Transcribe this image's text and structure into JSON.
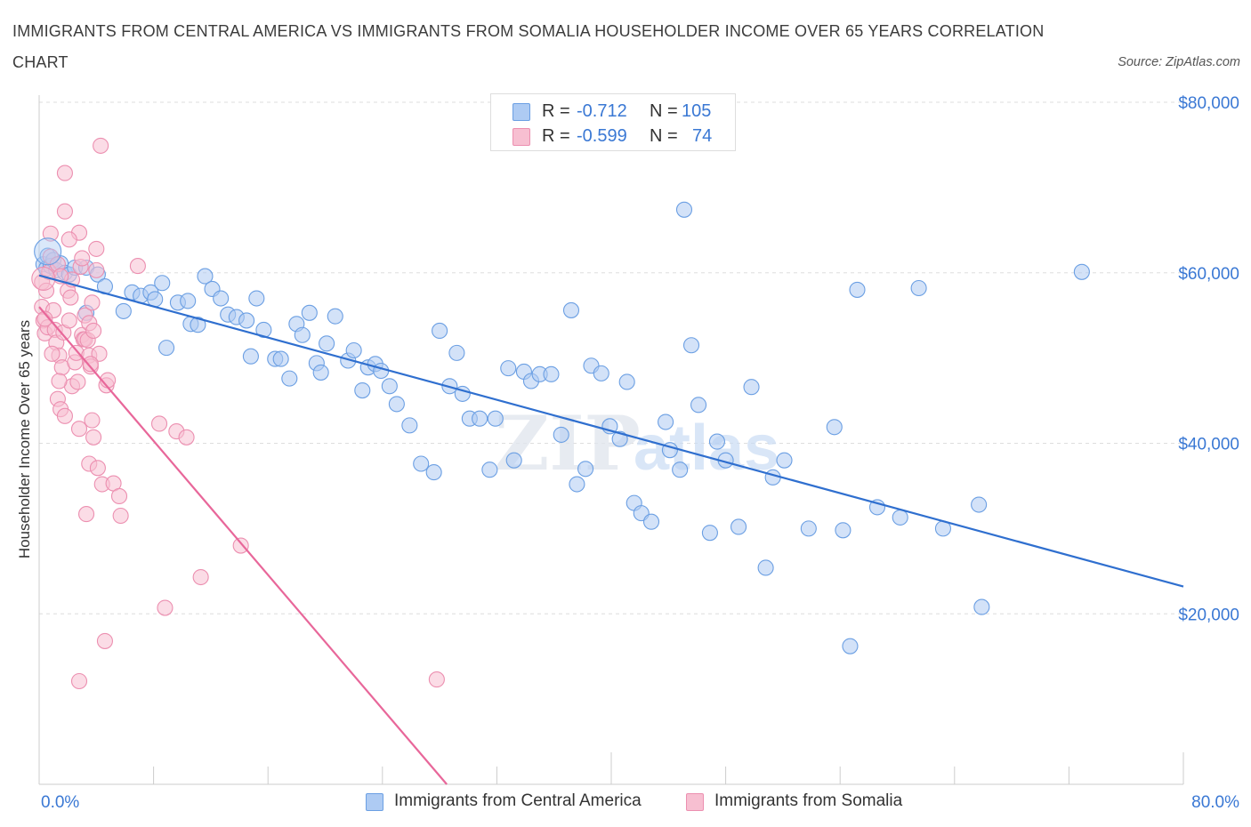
{
  "header": {
    "title": "IMMIGRANTS FROM CENTRAL AMERICA VS IMMIGRANTS FROM SOMALIA HOUSEHOLDER INCOME OVER 65 YEARS CORRELATION CHART",
    "source": "Source: ZipAtlas.com"
  },
  "legend": {
    "rows": [
      {
        "r_label": "R =",
        "r_value": "-0.712",
        "n_label": "N =",
        "n_value": "105"
      },
      {
        "r_label": "R =",
        "r_value": "-0.599",
        "n_label": "N =",
        "n_value": "74"
      }
    ]
  },
  "watermark": {
    "zip": "ZIP",
    "atlas": "atlas"
  },
  "colors": {
    "blue_fill": "#aecbf3",
    "blue_stroke": "#6b9fe3",
    "blue_line": "#2f6fcf",
    "pink_fill": "#f7bfd1",
    "pink_stroke": "#ec8fb0",
    "pink_line": "#e8679a",
    "tick_label": "#3a78d4",
    "grid": "#dddddd"
  },
  "chart_data": {
    "type": "scatter",
    "title": "IMMIGRANTS FROM CENTRAL AMERICA VS IMMIGRANTS FROM SOMALIA HOUSEHOLDER INCOME OVER 65 YEARS CORRELATION CHART",
    "xlabel": "",
    "ylabel": "Householder Income Over 65 years",
    "xlim": [
      0,
      80
    ],
    "ylim": [
      0,
      80000
    ],
    "x_tick_labels": [
      "0.0%",
      "80.0%"
    ],
    "y_ticks": [
      20000,
      40000,
      60000,
      80000
    ],
    "y_tick_labels": [
      "$20,000",
      "$40,000",
      "$60,000",
      "$80,000"
    ],
    "grid": "horizontal dashed",
    "legend_position": "bottom",
    "series": [
      {
        "name": "Immigrants from Central America",
        "color": "#6b9fe3",
        "trend": {
          "x": [
            0,
            80
          ],
          "y": [
            59700,
            23200
          ]
        },
        "points": [
          [
            0.3,
            61000
          ],
          [
            0.5,
            60500
          ],
          [
            0.6,
            62000
          ],
          [
            0.8,
            60800
          ],
          [
            1.0,
            61500
          ],
          [
            1.2,
            60300
          ],
          [
            1.5,
            61100
          ],
          [
            1.8,
            60000
          ],
          [
            2.1,
            59800
          ],
          [
            2.5,
            60600
          ],
          [
            3.3,
            60600
          ],
          [
            3.3,
            55300
          ],
          [
            4.1,
            59800
          ],
          [
            4.6,
            58400
          ],
          [
            5.9,
            55500
          ],
          [
            6.5,
            57700
          ],
          [
            7.1,
            57300
          ],
          [
            7.8,
            57700
          ],
          [
            8.1,
            56900
          ],
          [
            8.6,
            58800
          ],
          [
            8.9,
            51200
          ],
          [
            9.7,
            56500
          ],
          [
            10.4,
            56700
          ],
          [
            10.6,
            54000
          ],
          [
            11.1,
            53900
          ],
          [
            11.6,
            59600
          ],
          [
            12.1,
            58100
          ],
          [
            12.7,
            57000
          ],
          [
            13.2,
            55100
          ],
          [
            13.8,
            54800
          ],
          [
            14.5,
            54400
          ],
          [
            14.8,
            50200
          ],
          [
            15.2,
            57000
          ],
          [
            15.7,
            53300
          ],
          [
            16.5,
            49900
          ],
          [
            16.9,
            49900
          ],
          [
            17.5,
            47600
          ],
          [
            18.0,
            54000
          ],
          [
            18.4,
            52700
          ],
          [
            18.9,
            55300
          ],
          [
            19.4,
            49400
          ],
          [
            19.7,
            48300
          ],
          [
            20.1,
            51700
          ],
          [
            20.7,
            54900
          ],
          [
            21.6,
            49700
          ],
          [
            22.0,
            50900
          ],
          [
            22.6,
            46200
          ],
          [
            23.0,
            48900
          ],
          [
            23.5,
            49300
          ],
          [
            23.9,
            48500
          ],
          [
            24.5,
            46700
          ],
          [
            25.0,
            44600
          ],
          [
            25.9,
            42100
          ],
          [
            26.7,
            37600
          ],
          [
            27.6,
            36600
          ],
          [
            28.0,
            53200
          ],
          [
            28.7,
            46700
          ],
          [
            29.2,
            50600
          ],
          [
            29.6,
            45800
          ],
          [
            30.1,
            42900
          ],
          [
            30.8,
            42900
          ],
          [
            31.5,
            36900
          ],
          [
            31.9,
            42900
          ],
          [
            32.8,
            48800
          ],
          [
            33.2,
            38000
          ],
          [
            33.9,
            48400
          ],
          [
            34.4,
            47300
          ],
          [
            35.0,
            48100
          ],
          [
            35.8,
            48100
          ],
          [
            36.5,
            41000
          ],
          [
            37.2,
            55600
          ],
          [
            37.6,
            35200
          ],
          [
            38.2,
            37000
          ],
          [
            38.6,
            49100
          ],
          [
            39.3,
            48200
          ],
          [
            39.9,
            42000
          ],
          [
            40.6,
            40500
          ],
          [
            41.1,
            47200
          ],
          [
            41.6,
            33000
          ],
          [
            42.1,
            31800
          ],
          [
            42.8,
            30800
          ],
          [
            43.8,
            42500
          ],
          [
            44.1,
            39200
          ],
          [
            44.8,
            36900
          ],
          [
            45.1,
            67400
          ],
          [
            45.6,
            51500
          ],
          [
            46.1,
            44500
          ],
          [
            46.9,
            29500
          ],
          [
            47.4,
            40200
          ],
          [
            48.0,
            38000
          ],
          [
            48.9,
            30200
          ],
          [
            49.8,
            46600
          ],
          [
            50.8,
            25400
          ],
          [
            51.3,
            36000
          ],
          [
            52.1,
            38000
          ],
          [
            53.8,
            30000
          ],
          [
            55.6,
            41900
          ],
          [
            56.2,
            29800
          ],
          [
            57.2,
            58000
          ],
          [
            58.6,
            32500
          ],
          [
            60.2,
            31300
          ],
          [
            61.5,
            58200
          ],
          [
            63.2,
            30000
          ],
          [
            65.7,
            32800
          ],
          [
            65.9,
            20800
          ],
          [
            56.7,
            16200
          ],
          [
            72.9,
            60100
          ]
        ]
      },
      {
        "name": "Immigrants from Somalia",
        "color": "#ec8fb0",
        "trend": {
          "x": [
            0,
            28.5
          ],
          "y": [
            56000,
            0
          ]
        },
        "points": [
          [
            0.2,
            58900
          ],
          [
            0.2,
            56000
          ],
          [
            0.3,
            54400
          ],
          [
            0.4,
            52900
          ],
          [
            0.5,
            57900
          ],
          [
            0.6,
            53600
          ],
          [
            0.7,
            60100
          ],
          [
            0.8,
            61900
          ],
          [
            0.8,
            64600
          ],
          [
            1.0,
            55600
          ],
          [
            1.1,
            53300
          ],
          [
            1.2,
            51800
          ],
          [
            1.3,
            61000
          ],
          [
            1.3,
            45200
          ],
          [
            1.4,
            50300
          ],
          [
            1.5,
            44000
          ],
          [
            1.6,
            48900
          ],
          [
            1.7,
            53000
          ],
          [
            1.8,
            67200
          ],
          [
            1.8,
            43200
          ],
          [
            1.8,
            71700
          ],
          [
            2.0,
            57900
          ],
          [
            2.1,
            54400
          ],
          [
            2.2,
            57100
          ],
          [
            2.3,
            59200
          ],
          [
            2.3,
            46700
          ],
          [
            2.5,
            49500
          ],
          [
            2.6,
            50600
          ],
          [
            2.7,
            47200
          ],
          [
            2.8,
            64700
          ],
          [
            2.8,
            41700
          ],
          [
            2.9,
            60700
          ],
          [
            3.0,
            61700
          ],
          [
            3.0,
            52700
          ],
          [
            3.1,
            52200
          ],
          [
            3.2,
            55000
          ],
          [
            3.2,
            52200
          ],
          [
            3.3,
            31700
          ],
          [
            3.4,
            52100
          ],
          [
            3.5,
            54100
          ],
          [
            3.5,
            50300
          ],
          [
            3.5,
            37600
          ],
          [
            3.6,
            49000
          ],
          [
            3.7,
            56500
          ],
          [
            3.7,
            42700
          ],
          [
            3.8,
            53200
          ],
          [
            3.8,
            40700
          ],
          [
            4.0,
            62800
          ],
          [
            4.0,
            60300
          ],
          [
            4.1,
            37100
          ],
          [
            4.2,
            50500
          ],
          [
            4.3,
            74900
          ],
          [
            4.4,
            35200
          ],
          [
            4.6,
            16800
          ],
          [
            4.7,
            46800
          ],
          [
            4.8,
            47400
          ],
          [
            5.2,
            35300
          ],
          [
            5.6,
            33800
          ],
          [
            5.7,
            31500
          ],
          [
            6.9,
            60800
          ],
          [
            8.4,
            42300
          ],
          [
            8.8,
            20700
          ],
          [
            9.6,
            41400
          ],
          [
            10.3,
            40700
          ],
          [
            11.3,
            24300
          ],
          [
            14.1,
            28000
          ],
          [
            2.8,
            12100
          ],
          [
            27.8,
            12300
          ],
          [
            0.4,
            54600
          ],
          [
            1.5,
            59600
          ],
          [
            2.1,
            63900
          ],
          [
            0.9,
            50500
          ],
          [
            3.6,
            49300
          ],
          [
            1.4,
            47300
          ]
        ]
      }
    ]
  }
}
